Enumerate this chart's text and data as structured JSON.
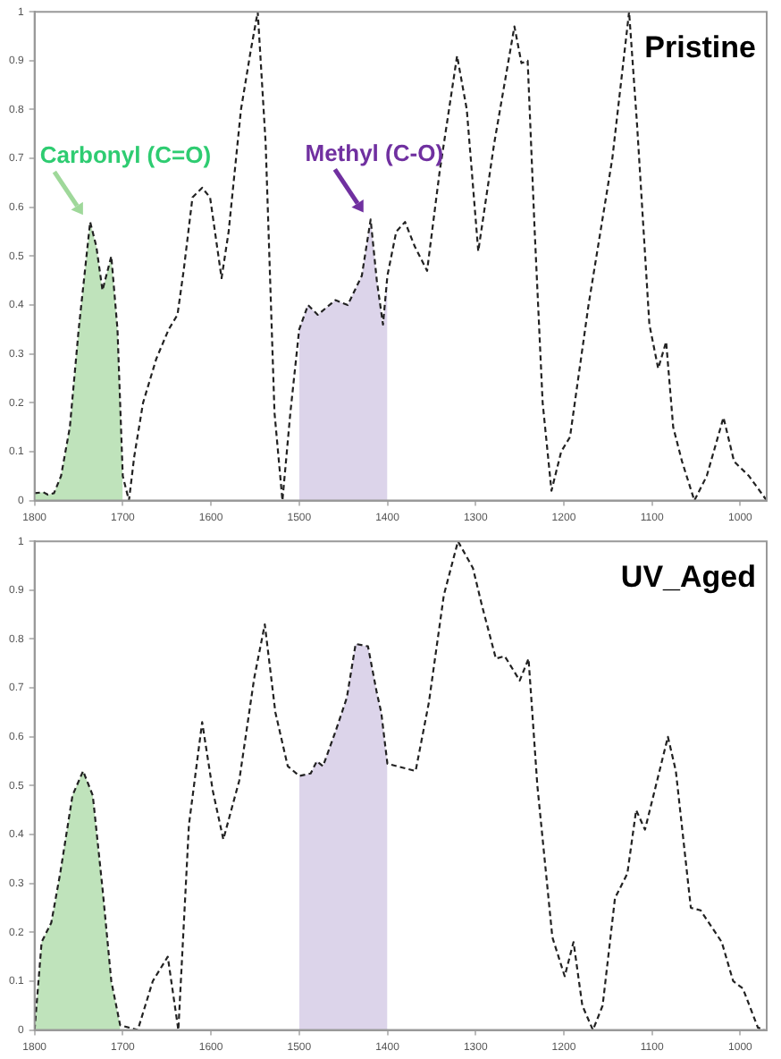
{
  "chart_data": [
    {
      "type": "line",
      "title": "Pristine",
      "xlim": [
        1800,
        970
      ],
      "xticks": [
        1800,
        1700,
        1600,
        1500,
        1400,
        1300,
        1200,
        1100,
        1000
      ],
      "ylim": [
        0,
        1
      ],
      "yticks": [
        0,
        0.1,
        0.2,
        0.3,
        0.4,
        0.5,
        0.6,
        0.7,
        0.8,
        0.9,
        1
      ],
      "grid": false,
      "legend": false,
      "line_style": "dashed",
      "marker": "none",
      "annotations": [
        "Carbonyl (C=O)",
        "Methyl (C-O)"
      ],
      "series": [
        {
          "color": "#222222",
          "x": [
            1800,
            1790,
            1785,
            1778,
            1770,
            1760,
            1750,
            1737,
            1730,
            1723,
            1713,
            1706,
            1700,
            1693,
            1687,
            1677,
            1662,
            1648,
            1638,
            1631,
            1621,
            1610,
            1601,
            1588,
            1580,
            1566,
            1555,
            1547,
            1538,
            1528,
            1519,
            1510,
            1500,
            1490,
            1479,
            1459,
            1445,
            1429,
            1419,
            1412,
            1405,
            1400,
            1390,
            1380,
            1369,
            1355,
            1341,
            1321,
            1310,
            1297,
            1279,
            1256,
            1248,
            1241,
            1233,
            1224,
            1214,
            1203,
            1193,
            1172,
            1145,
            1126,
            1117,
            1103,
            1093,
            1084,
            1076,
            1066,
            1052,
            1038,
            1019,
            1007,
            990,
            970
          ],
          "values": [
            0.015,
            0.017,
            0.012,
            0.015,
            0.05,
            0.15,
            0.35,
            0.57,
            0.52,
            0.43,
            0.5,
            0.35,
            0.05,
            0,
            0.09,
            0.2,
            0.29,
            0.35,
            0.38,
            0.47,
            0.62,
            0.64,
            0.62,
            0.455,
            0.55,
            0.8,
            0.92,
            1,
            0.73,
            0.18,
            0,
            0.18,
            0.35,
            0.4,
            0.38,
            0.41,
            0.4,
            0.46,
            0.575,
            0.45,
            0.36,
            0.46,
            0.55,
            0.57,
            0.52,
            0.47,
            0.67,
            0.91,
            0.8,
            0.51,
            0.73,
            0.97,
            0.895,
            0.9,
            0.55,
            0.2,
            0.02,
            0.1,
            0.13,
            0.4,
            0.7,
            1,
            0.77,
            0.36,
            0.27,
            0.325,
            0.15,
            0.08,
            0,
            0.05,
            0.17,
            0.08,
            0.05,
            0
          ]
        },
        {
          "type": "area",
          "color": "#bfe3bb",
          "x": [
            1800,
            1790,
            1785,
            1778,
            1770,
            1760,
            1750,
            1737,
            1730,
            1723,
            1713,
            1706,
            1700
          ],
          "values": [
            0.015,
            0.017,
            0.012,
            0.015,
            0.05,
            0.15,
            0.35,
            0.57,
            0.52,
            0.43,
            0.5,
            0.35,
            0.05
          ]
        },
        {
          "type": "area",
          "color": "#dcd4ea",
          "x": [
            1500,
            1490,
            1479,
            1459,
            1445,
            1429,
            1419,
            1412,
            1405,
            1400
          ],
          "values": [
            0.35,
            0.4,
            0.38,
            0.41,
            0.4,
            0.46,
            0.575,
            0.45,
            0.36,
            0.46
          ]
        }
      ]
    },
    {
      "type": "line",
      "title": "UV_Aged",
      "xlim": [
        1800,
        970
      ],
      "xticks": [
        1800,
        1700,
        1600,
        1500,
        1400,
        1300,
        1200,
        1100,
        1000
      ],
      "ylim": [
        0,
        1
      ],
      "yticks": [
        0,
        0.1,
        0.2,
        0.3,
        0.4,
        0.5,
        0.6,
        0.7,
        0.8,
        0.9,
        1
      ],
      "grid": false,
      "legend": false,
      "line_style": "dashed",
      "marker": "none",
      "series": [
        {
          "color": "#222222",
          "x": [
            1800,
            1792,
            1781,
            1771,
            1757,
            1745,
            1734,
            1723,
            1713,
            1703,
            1683,
            1666,
            1649,
            1637,
            1625,
            1610,
            1598,
            1586,
            1568,
            1551,
            1539,
            1527,
            1513,
            1500,
            1487,
            1480,
            1473,
            1459,
            1446,
            1436,
            1422,
            1412,
            1407,
            1400,
            1368,
            1353,
            1336,
            1320,
            1303,
            1293,
            1277,
            1267,
            1250,
            1240,
            1230,
            1213,
            1199,
            1189,
            1179,
            1167,
            1156,
            1142,
            1128,
            1118,
            1108,
            1097,
            1082,
            1073,
            1056,
            1045,
            1021,
            1008,
            997,
            980,
            973
          ],
          "values": [
            0,
            0.18,
            0.22,
            0.32,
            0.48,
            0.53,
            0.48,
            0.29,
            0.1,
            0.01,
            0,
            0.1,
            0.15,
            0,
            0.42,
            0.63,
            0.49,
            0.39,
            0.51,
            0.72,
            0.83,
            0.65,
            0.54,
            0.52,
            0.525,
            0.55,
            0.54,
            0.61,
            0.68,
            0.79,
            0.785,
            0.69,
            0.65,
            0.545,
            0.53,
            0.67,
            0.89,
            1,
            0.945,
            0.87,
            0.76,
            0.765,
            0.715,
            0.76,
            0.5,
            0.19,
            0.11,
            0.18,
            0.05,
            0,
            0.05,
            0.27,
            0.32,
            0.45,
            0.41,
            0.49,
            0.6,
            0.53,
            0.25,
            0.245,
            0.18,
            0.1,
            0.085,
            0.005,
            0
          ]
        },
        {
          "type": "area",
          "color": "#bfe3bb",
          "x": [
            1800,
            1792,
            1781,
            1771,
            1757,
            1745,
            1734,
            1723,
            1713,
            1703
          ],
          "values": [
            0,
            0.18,
            0.22,
            0.32,
            0.48,
            0.53,
            0.48,
            0.29,
            0.1,
            0.01
          ]
        },
        {
          "type": "area",
          "color": "#dcd4ea",
          "x": [
            1500,
            1487,
            1480,
            1473,
            1459,
            1446,
            1436,
            1422,
            1412,
            1407,
            1400
          ],
          "values": [
            0.52,
            0.525,
            0.55,
            0.54,
            0.61,
            0.68,
            0.79,
            0.785,
            0.69,
            0.65,
            0.545
          ]
        }
      ]
    }
  ]
}
